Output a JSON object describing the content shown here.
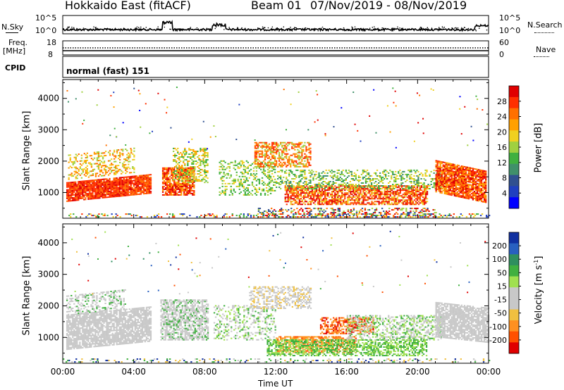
{
  "header": {
    "title": "Hokkaido East (fitACF)",
    "beam": "Beam 01",
    "dates": "07/Nov/2019 - 08/Nov/2019"
  },
  "side_labels": {
    "nsky": "N.Sky",
    "freq": "Freq.",
    "freq_unit": "[MHz]",
    "cpid": "CPID",
    "nsearch": "N.Search",
    "nave": "Nave"
  },
  "small_panels": {
    "nsky_left_ticks": [
      "10^5",
      "10^0"
    ],
    "nsky_right_ticks": [
      "10^5",
      "10^0"
    ],
    "freq_left_ticks": [
      "18",
      "8"
    ],
    "nave_right_ticks": [
      "60",
      "0"
    ],
    "cpid_text": "normal (fast) 151"
  },
  "chart_data": [
    {
      "type": "heatmap",
      "name": "power",
      "ylabel": "Slant Range [km]",
      "yticks": [
        1000,
        2000,
        3000,
        4000
      ],
      "ylim": [
        180,
        4600
      ],
      "xlim_hours": [
        0,
        24
      ],
      "colorbar": {
        "label": "Power [dB]",
        "ticks": [
          "28",
          "24",
          "20",
          "16",
          "12",
          "8",
          "4"
        ],
        "colors": [
          "#e00000",
          "#ff3000",
          "#ff7000",
          "#ffa000",
          "#f0d020",
          "#a0d040",
          "#40b040",
          "#40906a",
          "#305090",
          "#2040c0",
          "#0000ff"
        ]
      }
    },
    {
      "type": "heatmap",
      "name": "velocity",
      "ylabel": "Slant Range [km]",
      "yticks": [
        1000,
        2000,
        3000,
        4000
      ],
      "ylim": [
        180,
        4600
      ],
      "xlim_hours": [
        0,
        24
      ],
      "colorbar": {
        "label": "Velocity [m s",
        "label_sup": "-1",
        "label_end": "]",
        "ticks": [
          "200",
          "100",
          "50",
          "15",
          "-15",
          "-50",
          "-100",
          "-200"
        ],
        "colors": [
          "#1030a0",
          "#2860c0",
          "#2f8f5f",
          "#40b040",
          "#a0e050",
          "#c8c8c8",
          "#c8c8c8",
          "#f0c040",
          "#ff9020",
          "#ff5000",
          "#e00000"
        ]
      }
    }
  ],
  "time_axis": {
    "ticks": [
      "00:00",
      "04:00",
      "08:00",
      "12:00",
      "16:00",
      "20:00",
      "00:00"
    ],
    "label": "Time UT"
  }
}
